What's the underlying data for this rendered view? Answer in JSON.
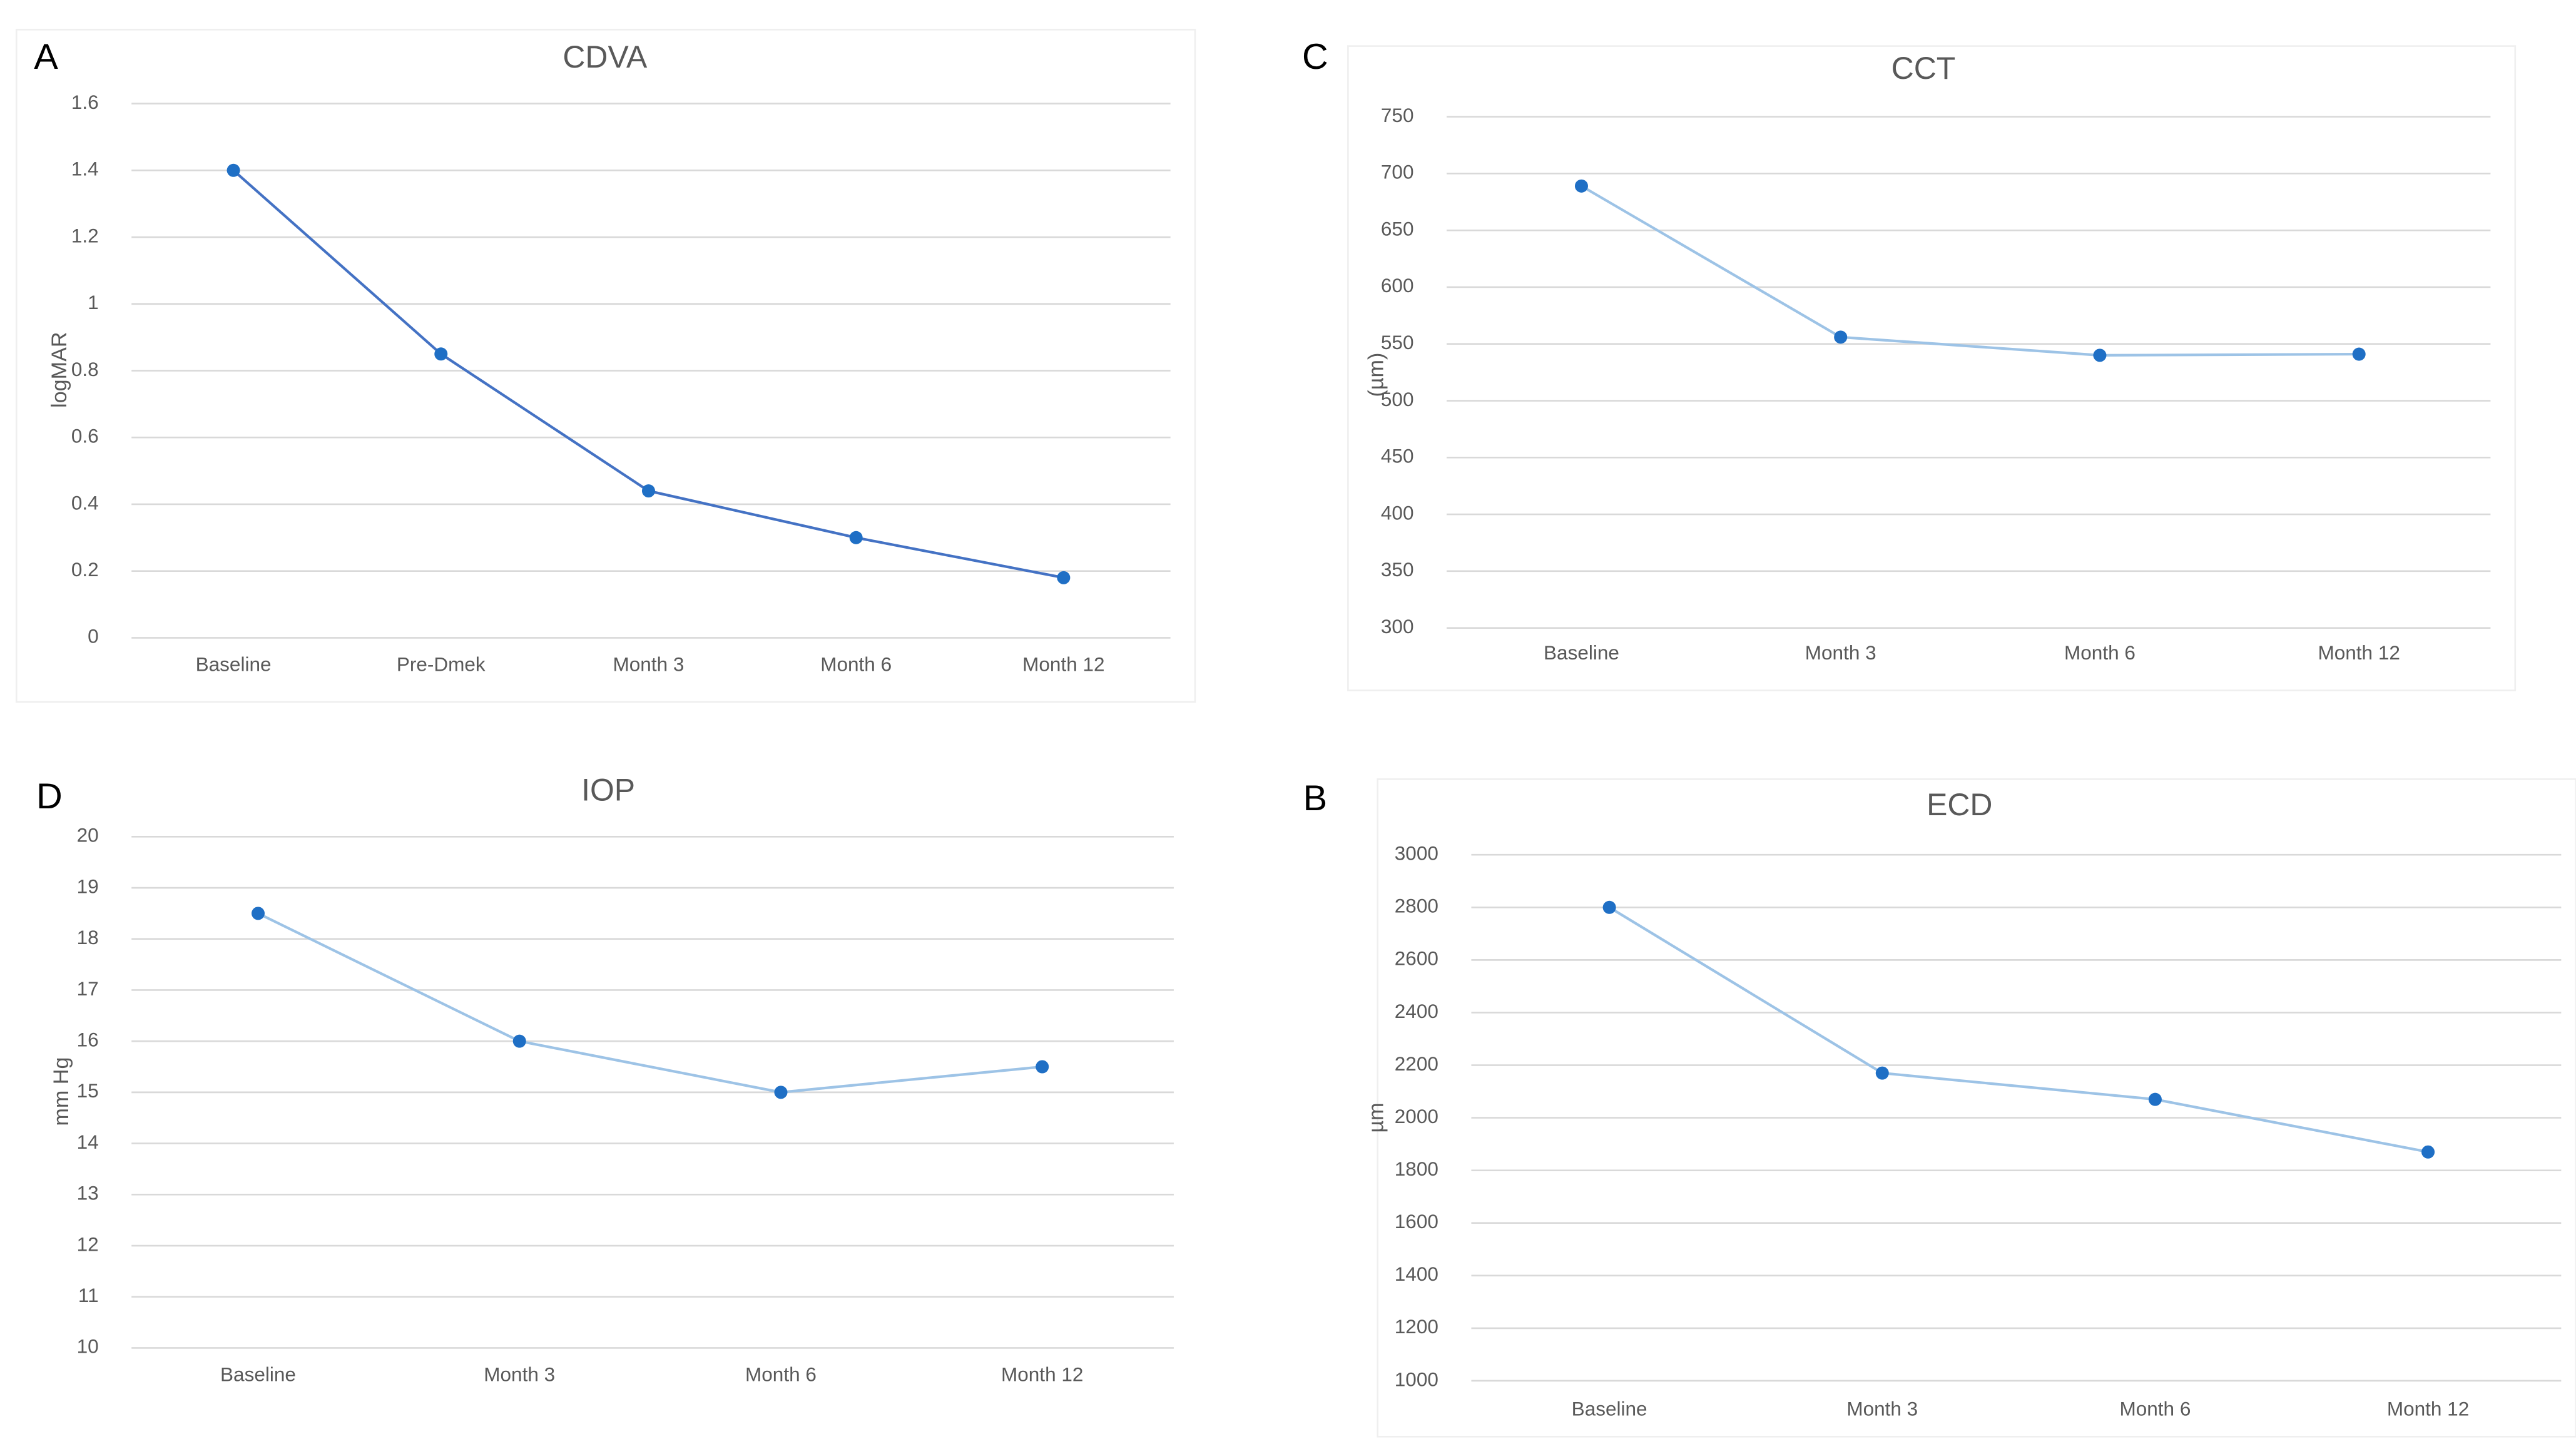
{
  "chart_data": [
    {
      "type": "line",
      "panel": "A",
      "title": "CDVA",
      "y_label": "logMAR",
      "categories": [
        "Baseline",
        "Pre-Dmek",
        "Month 3",
        "Month 6",
        "Month 12"
      ],
      "values": [
        1.4,
        0.85,
        0.44,
        0.3,
        0.18
      ],
      "color": "#4472c4",
      "marker_color": "#1f6fc5",
      "ylim": [
        0,
        1.6
      ],
      "yticks": [
        0,
        0.2,
        0.4,
        0.6,
        0.8,
        1,
        1.2,
        1.4,
        1.6
      ],
      "grid": true
    },
    {
      "type": "line",
      "panel": "C",
      "title": "CCT",
      "y_label": "(µm)",
      "categories": [
        "Baseline",
        "Month 3",
        "Month 6",
        "Month 12"
      ],
      "values": [
        689,
        556,
        540,
        541
      ],
      "color": "#9dc3e6",
      "marker_color": "#1f6fc5",
      "ylim": [
        300,
        750
      ],
      "yticks": [
        300,
        350,
        400,
        450,
        500,
        550,
        600,
        650,
        700,
        750
      ],
      "grid": true
    },
    {
      "type": "line",
      "panel": "D",
      "title": "IOP",
      "y_label": "mm Hg",
      "categories": [
        "Baseline",
        "Month 3",
        "Month 6",
        "Month 12"
      ],
      "values": [
        18.5,
        16,
        15,
        15.5
      ],
      "color": "#9dc3e6",
      "marker_color": "#1f6fc5",
      "ylim": [
        10,
        20
      ],
      "yticks": [
        10,
        11,
        12,
        13,
        14,
        15,
        16,
        17,
        18,
        19,
        20
      ],
      "grid": true
    },
    {
      "type": "line",
      "panel": "B",
      "title": "ECD",
      "y_label": "µm",
      "categories": [
        "Baseline",
        "Month 3",
        "Month 6",
        "Month 12"
      ],
      "values": [
        2800,
        2170,
        2070,
        1870
      ],
      "color": "#9dc3e6",
      "marker_color": "#1f6fc5",
      "ylim": [
        1000,
        3000
      ],
      "yticks": [
        1000,
        1200,
        1400,
        1600,
        1800,
        2000,
        2200,
        2400,
        2600,
        2800,
        3000
      ],
      "grid": true
    }
  ]
}
